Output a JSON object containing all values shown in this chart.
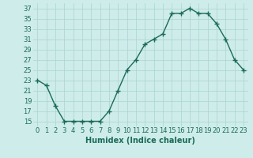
{
  "x": [
    0,
    1,
    2,
    3,
    4,
    5,
    6,
    7,
    8,
    9,
    10,
    11,
    12,
    13,
    14,
    15,
    16,
    17,
    18,
    19,
    20,
    21,
    22,
    23
  ],
  "y": [
    23,
    22,
    18,
    15,
    15,
    15,
    15,
    15,
    17,
    21,
    25,
    27,
    30,
    31,
    32,
    36,
    36,
    37,
    36,
    36,
    34,
    31,
    27,
    25
  ],
  "line_color": "#1a6b5a",
  "marker": "+",
  "marker_size": 4,
  "marker_edge_width": 1.0,
  "bg_color": "#ceecea",
  "grid_color": "#a8d5d0",
  "xlabel": "Humidex (Indice chaleur)",
  "xlim": [
    -0.5,
    23.5
  ],
  "ylim": [
    14,
    38
  ],
  "yticks": [
    15,
    17,
    19,
    21,
    23,
    25,
    27,
    29,
    31,
    33,
    35,
    37
  ],
  "xtick_labels": [
    "0",
    "1",
    "2",
    "3",
    "4",
    "5",
    "6",
    "7",
    "8",
    "9",
    "10",
    "11",
    "12",
    "13",
    "14",
    "15",
    "16",
    "17",
    "18",
    "19",
    "20",
    "21",
    "22",
    "23"
  ],
  "xlabel_fontsize": 7,
  "tick_fontsize": 6,
  "line_width": 1.0,
  "tick_color": "#1a6b5a"
}
